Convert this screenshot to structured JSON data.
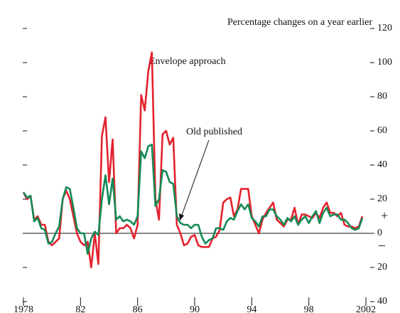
{
  "chart_data": {
    "type": "line",
    "annotations": [
      "Percentage changes on a year earlier",
      "Envelope approach",
      "Old published",
      "+",
      "–"
    ],
    "x": [
      1978,
      1978.25,
      1978.5,
      1978.75,
      1979,
      1979.25,
      1979.5,
      1979.75,
      1980,
      1980.25,
      1980.5,
      1980.75,
      1981,
      1981.25,
      1981.5,
      1981.75,
      1982,
      1982.25,
      1982.5,
      1982.75,
      1983,
      1983.25,
      1983.5,
      1983.75,
      1984,
      1984.25,
      1984.5,
      1984.75,
      1985,
      1985.25,
      1985.5,
      1985.75,
      1986,
      1986.25,
      1986.5,
      1986.75,
      1987,
      1987.25,
      1987.5,
      1987.75,
      1988,
      1988.25,
      1988.5,
      1988.75,
      1989,
      1989.25,
      1989.5,
      1989.75,
      1990,
      1990.25,
      1990.5,
      1990.75,
      1991,
      1991.25,
      1991.5,
      1991.75,
      1992,
      1992.25,
      1992.5,
      1992.75,
      1993,
      1993.25,
      1993.5,
      1993.75,
      1994,
      1994.25,
      1994.5,
      1994.75,
      1995,
      1995.25,
      1995.5,
      1995.75,
      1996,
      1996.25,
      1996.5,
      1996.75,
      1997,
      1997.25,
      1997.5,
      1997.75,
      1998,
      1998.25,
      1998.5,
      1998.75,
      1999,
      1999.25,
      1999.5,
      1999.75,
      2000,
      2000.25,
      2000.5,
      2000.75,
      2001,
      2001.25,
      2001.5,
      2001.75
    ],
    "series": [
      {
        "name": "Envelope approach",
        "color": "#e3222d",
        "values": [
          24,
          20,
          22,
          8,
          10,
          5,
          5,
          -5,
          -7,
          -5,
          -3,
          20,
          25,
          20,
          10,
          0,
          -5,
          -7,
          -5,
          -20,
          0,
          -18,
          57,
          68,
          30,
          55,
          0,
          3,
          3,
          5,
          3,
          -3,
          5,
          81,
          72,
          95,
          106,
          20,
          8,
          58,
          60,
          52,
          56,
          5,
          0,
          -7,
          -6,
          -2,
          -1,
          -7,
          -8,
          -8,
          -8,
          -3,
          -2,
          2,
          18,
          20,
          21,
          10,
          14,
          26,
          26,
          26,
          10,
          5,
          0,
          8,
          12,
          15,
          18,
          8,
          6,
          4,
          8,
          8,
          15,
          5,
          11,
          11,
          10,
          9,
          12,
          9,
          15,
          18,
          12,
          12,
          10,
          12,
          5,
          4,
          4,
          3,
          4,
          10
        ]
      },
      {
        "name": "Old published",
        "color": "#138a55",
        "values": [
          24,
          21,
          22,
          7,
          9,
          3,
          2,
          -6,
          -5,
          0,
          4,
          20,
          27,
          26,
          15,
          3,
          0,
          0,
          -12,
          -3,
          1,
          -1,
          20,
          34,
          17,
          32,
          8,
          10,
          7,
          8,
          7,
          5,
          10,
          48,
          44,
          51,
          52,
          16,
          20,
          37,
          36,
          30,
          29,
          10,
          6,
          5,
          5,
          3,
          5,
          5,
          -2,
          -6,
          -4,
          -3,
          3,
          3,
          2,
          7,
          9,
          8,
          13,
          17,
          14,
          17,
          9,
          7,
          4,
          10,
          10,
          14,
          14,
          10,
          8,
          5,
          9,
          7,
          10,
          5,
          8,
          10,
          6,
          10,
          13,
          6,
          12,
          15,
          10,
          11,
          11,
          8,
          8,
          6,
          3,
          2,
          3,
          9
        ]
      }
    ],
    "xlim": [
      1978,
      2001.75
    ],
    "xticks": [
      {
        "value": 1978,
        "label": "1978"
      },
      {
        "value": 1982,
        "label": "82"
      },
      {
        "value": 1986,
        "label": "86"
      },
      {
        "value": 1990,
        "label": "90"
      },
      {
        "value": 1994,
        "label": "94"
      },
      {
        "value": 1998,
        "label": "98"
      },
      {
        "value": 2002,
        "label": "2002"
      }
    ],
    "ylim": [
      -40,
      120
    ],
    "yticks": [
      {
        "value": -40,
        "label": "40"
      },
      {
        "value": -20,
        "label": "20"
      },
      0,
      20,
      40,
      60,
      80,
      100,
      120
    ]
  }
}
